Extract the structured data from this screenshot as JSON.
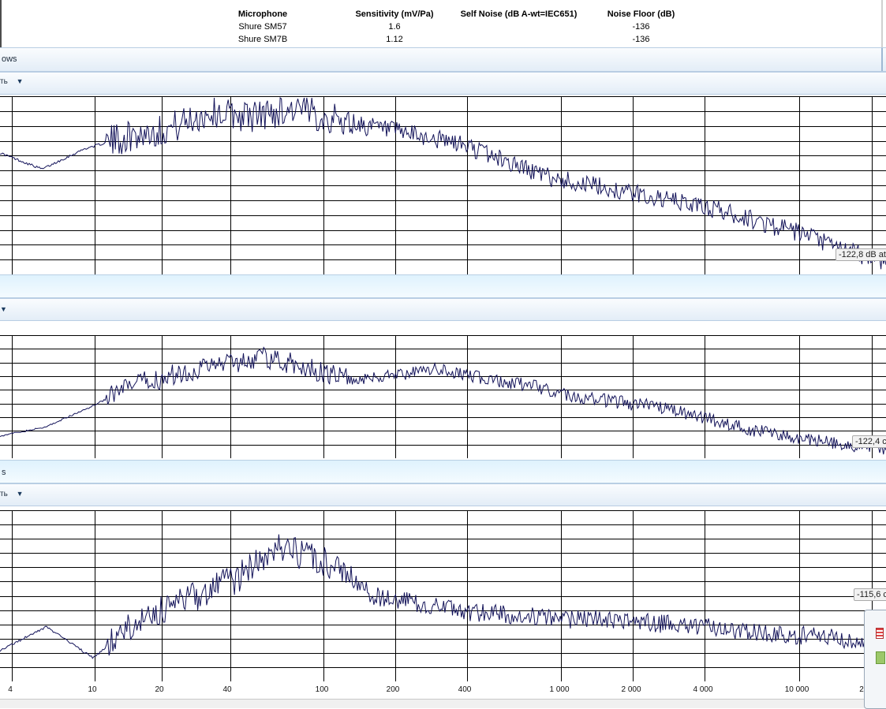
{
  "mic_table": {
    "headers": [
      "Microphone",
      "Sensitivity (mV/Pa)",
      "Self Noise (dB A-wt=IEC651)",
      "Noise Floor (dB)"
    ],
    "rows": [
      [
        "Shure SM57",
        "1.6",
        "",
        "-136"
      ],
      [
        "Shure SM7B",
        "1.12",
        "",
        "-136"
      ]
    ]
  },
  "panel1": {
    "title": "ows",
    "dropdown_label": "ть",
    "readout": "-122,8 dB at"
  },
  "panel2": {
    "readout": "-122,4 c"
  },
  "panel3": {
    "title": "s",
    "dropdown_label": "ть",
    "readout": "-115,6 c"
  },
  "freq_axis": {
    "tick_labels": [
      "4",
      "10",
      "20",
      "40",
      "100",
      "200",
      "400",
      "1 000",
      "2 000",
      "4 000",
      "10 000",
      "2"
    ]
  },
  "colors": {
    "trace": "#14145a",
    "grid": "#000000",
    "bar_bg": "#e6eef7",
    "strip_bg": "#e3f4fd"
  },
  "icons": {
    "dropdown": "chevron-down-icon"
  },
  "chart_data": [
    {
      "type": "line",
      "scale_x": "log",
      "readout": "-122,8 dB at",
      "x_ticks": [
        "4",
        "10",
        "20",
        "40",
        "100",
        "200",
        "400",
        "1 000",
        "2 000",
        "4 000",
        "10 000"
      ],
      "series": [
        {
          "values_db": [
            -96,
            -100,
            -95,
            -92,
            -90,
            -86,
            -87,
            -85,
            -88,
            -90,
            -92,
            -94,
            -98,
            -102,
            -104,
            -106,
            -108,
            -110,
            -113,
            -116,
            -120,
            -122.8
          ]
        }
      ]
    },
    {
      "type": "line",
      "scale_x": "log",
      "readout": "-122,4 c",
      "x_ticks": [
        "4",
        "10",
        "20",
        "40",
        "100",
        "200",
        "400",
        "1 000",
        "2 000",
        "4 000",
        "10 000"
      ],
      "series": [
        {
          "values_db": [
            -118,
            -115,
            -108,
            -100,
            -96,
            -92,
            -90,
            -94,
            -98,
            -96,
            -94,
            -98,
            -100,
            -104,
            -106,
            -108,
            -112,
            -116,
            -119,
            -121,
            -122.4
          ]
        }
      ]
    },
    {
      "type": "line",
      "scale_x": "log",
      "readout": "-115,6 c",
      "x_ticks": [
        "4",
        "10",
        "20",
        "40",
        "100",
        "200",
        "400",
        "1 000",
        "2 000",
        "4 000",
        "10 000"
      ],
      "series": [
        {
          "values_db": [
            -118,
            -112,
            -120,
            -110,
            -105,
            -100,
            -92,
            -95,
            -104,
            -106,
            -108,
            -109,
            -110,
            -110,
            -111,
            -112,
            -113,
            -114,
            -115,
            -115.6
          ]
        }
      ]
    }
  ]
}
